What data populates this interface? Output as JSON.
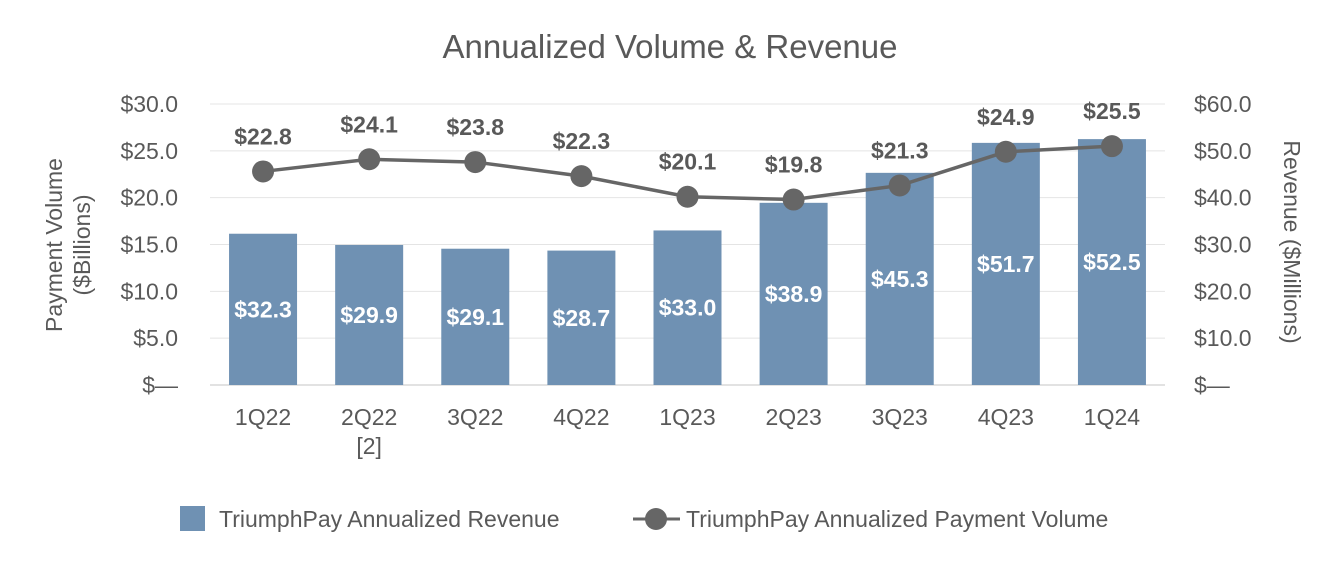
{
  "chart_data": {
    "type": "bar",
    "title": "Annualized Volume & Revenue",
    "categories": [
      "1Q22",
      "2Q22\n[2]",
      "3Q22",
      "4Q22",
      "1Q23",
      "2Q23",
      "3Q23",
      "4Q23",
      "1Q24"
    ],
    "ylabel_left_line1": "Payment Volume",
    "ylabel_left_line2": "($Billions)",
    "ylabel_right": "Revenue ($Millions)",
    "ylim_left": [
      0,
      30
    ],
    "ylim_right": [
      0,
      60
    ],
    "left_ticks": [
      "$—",
      "$5.0",
      "$10.0",
      "$15.0",
      "$20.0",
      "$25.0",
      "$30.0"
    ],
    "right_ticks": [
      "$—",
      "$10.0",
      "$20.0",
      "$30.0",
      "$40.0",
      "$50.0",
      "$60.0"
    ],
    "grid": true,
    "legend_position": "bottom",
    "series": [
      {
        "name": "TriumphPay Annualized Revenue",
        "type": "bar",
        "axis": "right",
        "color": "#6f91b3",
        "values": [
          32.3,
          29.9,
          29.1,
          28.7,
          33.0,
          38.9,
          45.3,
          51.7,
          52.5
        ],
        "labels": [
          "$32.3",
          "$29.9",
          "$29.1",
          "$28.7",
          "$33.0",
          "$38.9",
          "$45.3",
          "$51.7",
          "$52.5"
        ]
      },
      {
        "name": "TriumphPay Annualized Payment Volume",
        "type": "line",
        "axis": "left",
        "color": "#666666",
        "values": [
          22.8,
          24.1,
          23.8,
          22.3,
          20.1,
          19.8,
          21.3,
          24.9,
          25.5
        ],
        "labels": [
          "$22.8",
          "$24.1",
          "$23.8",
          "$22.3",
          "$20.1",
          "$19.8",
          "$21.3",
          "$24.9",
          "$25.5"
        ]
      }
    ]
  }
}
